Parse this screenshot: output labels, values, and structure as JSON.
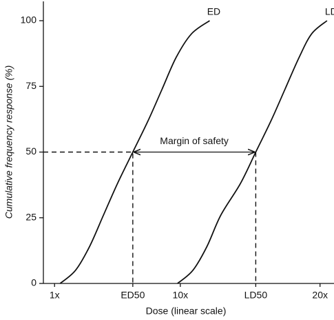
{
  "chart_data": {
    "type": "line",
    "x_label": "Dose (linear scale)",
    "y_label": "Cumulative frequency response (%)",
    "xlim": [
      0.2,
      21
    ],
    "ylim": [
      0,
      100
    ],
    "xticks": [
      {
        "value": 1,
        "label": "1x"
      },
      {
        "value": 6.6,
        "label": "ED50"
      },
      {
        "value": 10,
        "label": "10x"
      },
      {
        "value": 15.4,
        "label": "LD50"
      },
      {
        "value": 20,
        "label": "20x"
      }
    ],
    "yticks": [
      0,
      25,
      50,
      75,
      100
    ],
    "annotations": [
      "Margin of safety"
    ],
    "series": [
      {
        "name": "ED",
        "color": "#111111",
        "x": [
          1.4,
          2.5,
          3.5,
          4.5,
          5.5,
          6.6,
          7.7,
          8.7,
          9.7,
          10.8,
          12.1
        ],
        "values": [
          0,
          5,
          14,
          26,
          38,
          50,
          62,
          74,
          86,
          95,
          100
        ]
      },
      {
        "name": "LD",
        "color": "#111111",
        "x": [
          9.8,
          10.9,
          11.9,
          12.9,
          14.3,
          15.4,
          16.5,
          17.5,
          18.5,
          19.4,
          20.5
        ],
        "values": [
          0,
          5,
          14,
          26,
          38,
          50,
          62,
          74,
          86,
          95,
          100
        ]
      }
    ]
  }
}
